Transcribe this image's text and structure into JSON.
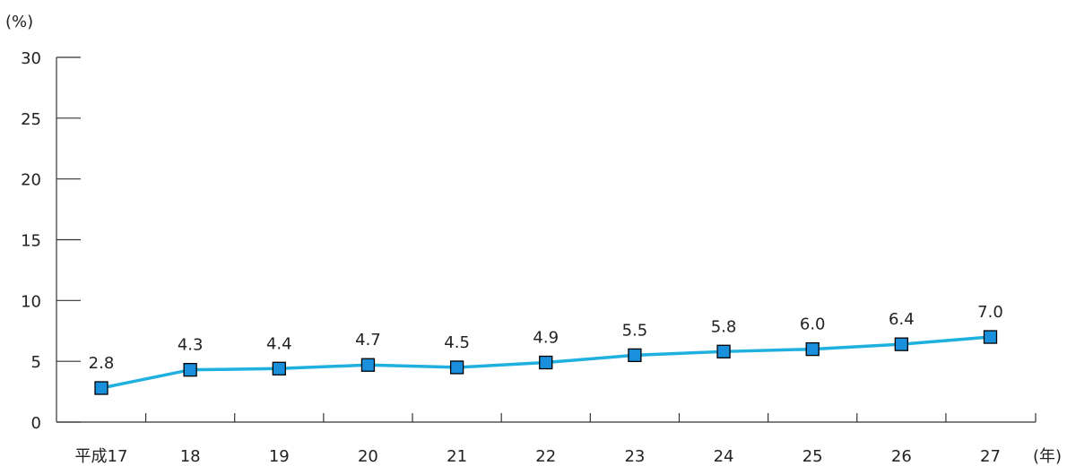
{
  "chart_data": {
    "type": "line",
    "y_unit_label": "(%)",
    "x_unit_label": "(年)",
    "categories": [
      "平成17",
      "18",
      "19",
      "20",
      "21",
      "22",
      "23",
      "24",
      "25",
      "26",
      "27"
    ],
    "series": [
      {
        "values": [
          2.8,
          4.3,
          4.4,
          4.7,
          4.5,
          4.9,
          5.5,
          5.8,
          6.0,
          6.4,
          7.0
        ]
      }
    ],
    "data_labels": [
      "2.8",
      "4.3",
      "4.4",
      "4.7",
      "4.5",
      "4.9",
      "5.5",
      "5.8",
      "6.0",
      "6.4",
      "7.0"
    ],
    "y_ticks": [
      "0",
      "5",
      "10",
      "15",
      "20",
      "25",
      "30"
    ],
    "ylim": [
      0,
      30
    ],
    "grid": false,
    "line_color": "#1fb0e0",
    "marker_color": "#1a8fdc",
    "marker_edge_color": "#000000",
    "marker_shape": "square"
  }
}
